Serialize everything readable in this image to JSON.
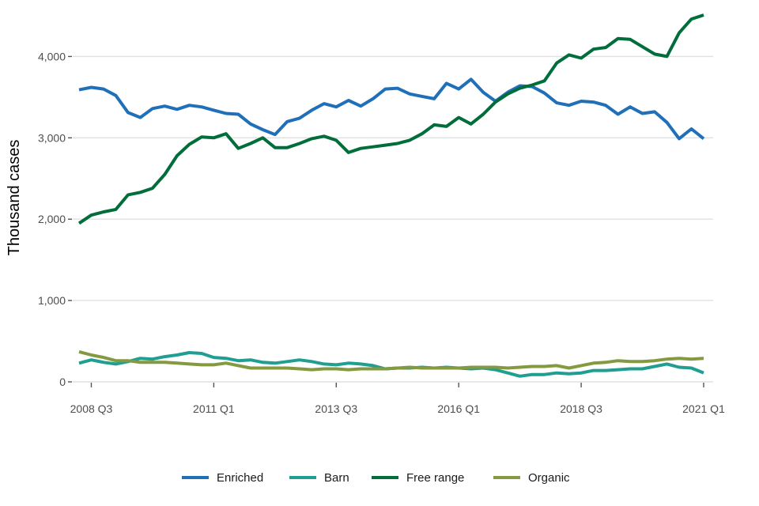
{
  "chart_data": {
    "type": "line",
    "title": "",
    "xlabel": "",
    "ylabel": "Thousand cases",
    "ylim": [
      0,
      4500
    ],
    "y_ticks": [
      0,
      1000,
      2000,
      3000,
      4000
    ],
    "y_tick_labels": [
      "0",
      "1,000",
      "2,000",
      "3,000",
      "4,000"
    ],
    "x_ticks": [
      "2008 Q3",
      "2011 Q1",
      "2013 Q3",
      "2016 Q1",
      "2018 Q3",
      "2021 Q1"
    ],
    "grid": "horizontal",
    "legend_position": "bottom",
    "x": [
      "2008 Q2",
      "2008 Q3",
      "2008 Q4",
      "2009 Q1",
      "2009 Q2",
      "2009 Q3",
      "2009 Q4",
      "2010 Q1",
      "2010 Q2",
      "2010 Q3",
      "2010 Q4",
      "2011 Q1",
      "2011 Q2",
      "2011 Q3",
      "2011 Q4",
      "2012 Q1",
      "2012 Q2",
      "2012 Q3",
      "2012 Q4",
      "2013 Q1",
      "2013 Q2",
      "2013 Q3",
      "2013 Q4",
      "2014 Q1",
      "2014 Q2",
      "2014 Q3",
      "2014 Q4",
      "2015 Q1",
      "2015 Q2",
      "2015 Q3",
      "2015 Q4",
      "2016 Q1",
      "2016 Q2",
      "2016 Q3",
      "2016 Q4",
      "2017 Q1",
      "2017 Q2",
      "2017 Q3",
      "2017 Q4",
      "2018 Q1",
      "2018 Q2",
      "2018 Q3",
      "2018 Q4",
      "2019 Q1",
      "2019 Q2",
      "2019 Q3",
      "2019 Q4",
      "2020 Q1",
      "2020 Q2",
      "2020 Q3",
      "2020 Q4",
      "2021 Q1"
    ],
    "series": [
      {
        "name": "Enriched",
        "color": "#1f6fb9",
        "values": [
          3590,
          3620,
          3600,
          3520,
          3310,
          3250,
          3360,
          3390,
          3350,
          3400,
          3380,
          3340,
          3300,
          3290,
          3170,
          3100,
          3040,
          3200,
          3240,
          3340,
          3420,
          3380,
          3460,
          3390,
          3480,
          3600,
          3610,
          3540,
          3510,
          3480,
          3670,
          3600,
          3720,
          3560,
          3450,
          3560,
          3640,
          3630,
          3550,
          3430,
          3400,
          3450,
          3440,
          3400,
          3290,
          3380,
          3300,
          3320,
          3190,
          2990,
          3110,
          2990
        ]
      },
      {
        "name": "Barn",
        "color": "#1f9e91",
        "values": [
          230,
          270,
          240,
          220,
          250,
          290,
          280,
          310,
          330,
          360,
          350,
          300,
          290,
          260,
          270,
          240,
          230,
          250,
          270,
          250,
          220,
          210,
          230,
          220,
          200,
          160,
          170,
          170,
          180,
          170,
          180,
          170,
          160,
          170,
          150,
          110,
          70,
          90,
          90,
          110,
          100,
          110,
          140,
          140,
          150,
          160,
          160,
          190,
          220,
          180,
          170,
          110
        ]
      },
      {
        "name": "Free range",
        "color": "#006d3a",
        "values": [
          1950,
          2050,
          2090,
          2120,
          2300,
          2330,
          2380,
          2550,
          2780,
          2920,
          3010,
          3000,
          3050,
          2870,
          2930,
          3000,
          2880,
          2880,
          2930,
          2990,
          3020,
          2970,
          2820,
          2870,
          2890,
          2910,
          2930,
          2970,
          3050,
          3160,
          3140,
          3250,
          3170,
          3290,
          3440,
          3540,
          3610,
          3650,
          3700,
          3920,
          4020,
          3980,
          4090,
          4110,
          4220,
          4210,
          4120,
          4030,
          4000,
          4290,
          4460,
          4510
        ]
      },
      {
        "name": "Organic",
        "color": "#849a40",
        "values": [
          370,
          330,
          300,
          260,
          260,
          240,
          240,
          240,
          230,
          220,
          210,
          210,
          230,
          200,
          170,
          170,
          170,
          170,
          160,
          150,
          160,
          160,
          150,
          160,
          160,
          160,
          170,
          180,
          170,
          170,
          170,
          170,
          180,
          180,
          180,
          170,
          180,
          190,
          190,
          200,
          170,
          200,
          230,
          240,
          260,
          250,
          250,
          260,
          280,
          290,
          280,
          290
        ]
      }
    ]
  }
}
